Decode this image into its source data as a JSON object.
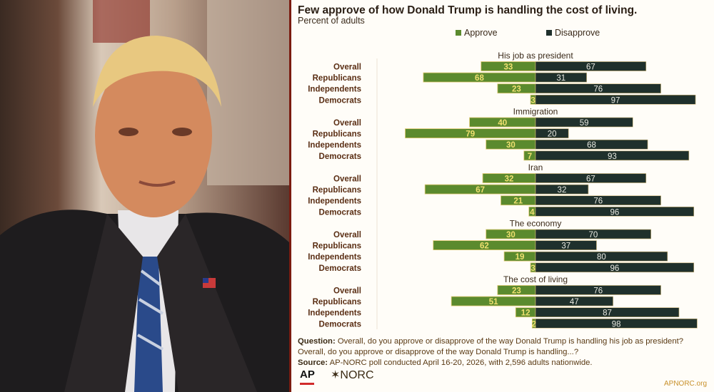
{
  "chart_data": {
    "type": "bar",
    "orientation": "horizontal-diverging",
    "title": "Few approve of how Donald Trump is handling the cost of living.",
    "subtitle": "Percent of adults",
    "legend": {
      "placement": "top",
      "entries": [
        "Approve",
        "Disapprove"
      ]
    },
    "colors": {
      "Approve": "#5b8a2e",
      "Disapprove": "#1f302c"
    },
    "categories": [
      "Overall",
      "Republicans",
      "Independents",
      "Democrats"
    ],
    "groups": [
      {
        "name": "His job as president",
        "approve": [
          33,
          68,
          23,
          3
        ],
        "disapprove": [
          67,
          31,
          76,
          97
        ]
      },
      {
        "name": "Immigration",
        "approve": [
          40,
          79,
          30,
          7
        ],
        "disapprove": [
          59,
          20,
          68,
          93
        ]
      },
      {
        "name": "Iran",
        "approve": [
          32,
          67,
          21,
          4
        ],
        "disapprove": [
          67,
          32,
          76,
          96
        ]
      },
      {
        "name": "The economy",
        "approve": [
          30,
          62,
          19,
          3
        ],
        "disapprove": [
          70,
          37,
          80,
          96
        ]
      },
      {
        "name": "The cost of living",
        "approve": [
          23,
          51,
          12,
          2
        ],
        "disapprove": [
          76,
          47,
          87,
          98
        ]
      }
    ],
    "grid": false
  },
  "footer": {
    "question_label": "Question:",
    "question": "Overall, do you approve or disapprove of the way Donald Trump is handling his job as president? Overall, do you approve or disapprove of the way Donald Trump is handling...?",
    "source_label": "Source:",
    "source": "AP-NORC poll conducted April 16-20, 2026, with 2,596 adults nationwide.",
    "logo_ap": "AP",
    "logo_norc": "✶NORC",
    "url": "APNORC.org"
  }
}
